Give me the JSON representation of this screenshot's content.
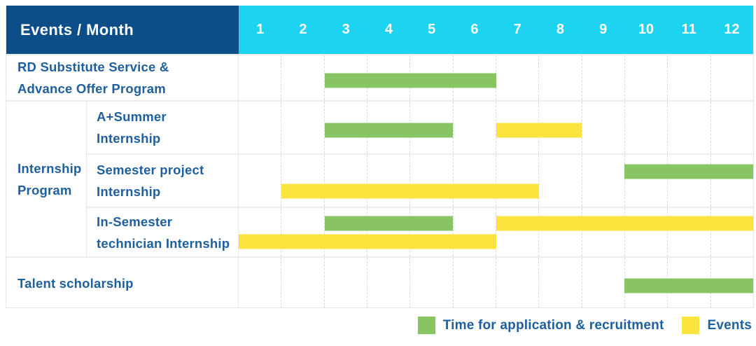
{
  "header": {
    "title": "Events / Month"
  },
  "colors": {
    "header_bg": "#0d4e88",
    "month_header_bg": "#1dd3f0",
    "label_text": "#1e5f9f",
    "application_bar": "#87c563",
    "events_bar": "#fde33d",
    "row_border": "#ededed",
    "grid_line": "#d8d8d8",
    "table_border": "#e7e7e7",
    "background": "#ffffff"
  },
  "chart_data": {
    "type": "bar",
    "subtype": "gantt",
    "title": "Events / Month",
    "xlabel": "Month",
    "x_range": [
      1,
      12
    ],
    "grid": "dashed-vertical",
    "legend_position": "bottom-right",
    "months": [
      "1",
      "2",
      "3",
      "4",
      "5",
      "6",
      "7",
      "8",
      "9",
      "10",
      "11",
      "12"
    ],
    "legend": [
      {
        "key": "application",
        "label": "Time for application & recruitment",
        "color": "#87c563"
      },
      {
        "key": "events",
        "label": "Events",
        "color": "#fde33d"
      }
    ],
    "rows": [
      {
        "id": "rd-substitute-service-advance-offer-program",
        "group": null,
        "label": "RD Substitute Service &\nAdvance Offer Program",
        "bars": [
          {
            "key": "application",
            "start_month": 3,
            "end_month": 6,
            "lane": "single"
          }
        ]
      },
      {
        "id": "a-plus-summer-internship",
        "group": "Internship\nProgram",
        "label": "A+Summer\nInternship",
        "bars": [
          {
            "key": "application",
            "start_month": 3,
            "end_month": 5,
            "lane": "single"
          },
          {
            "key": "events",
            "start_month": 7,
            "end_month": 8,
            "lane": "single"
          }
        ]
      },
      {
        "id": "semester-project-internship",
        "group": "Internship\nProgram",
        "label": "Semester project\nInternship",
        "bars": [
          {
            "key": "application",
            "start_month": 10,
            "end_month": 12,
            "lane": "top"
          },
          {
            "key": "events",
            "start_month": 2,
            "end_month": 7,
            "lane": "bottom"
          }
        ]
      },
      {
        "id": "in-semester-technician-internship",
        "group": "Internship\nProgram",
        "label": "In-Semester\ntechnician Internship",
        "bars": [
          {
            "key": "application",
            "start_month": 3,
            "end_month": 5,
            "lane": "top"
          },
          {
            "key": "events",
            "start_month": 7,
            "end_month": 12,
            "lane": "top"
          },
          {
            "key": "events",
            "start_month": 1,
            "end_month": 6,
            "lane": "bottom"
          }
        ]
      },
      {
        "id": "talent-scholarship",
        "group": null,
        "label": "Talent scholarship",
        "bars": [
          {
            "key": "application",
            "start_month": 10,
            "end_month": 12,
            "lane": "single"
          }
        ]
      }
    ]
  }
}
